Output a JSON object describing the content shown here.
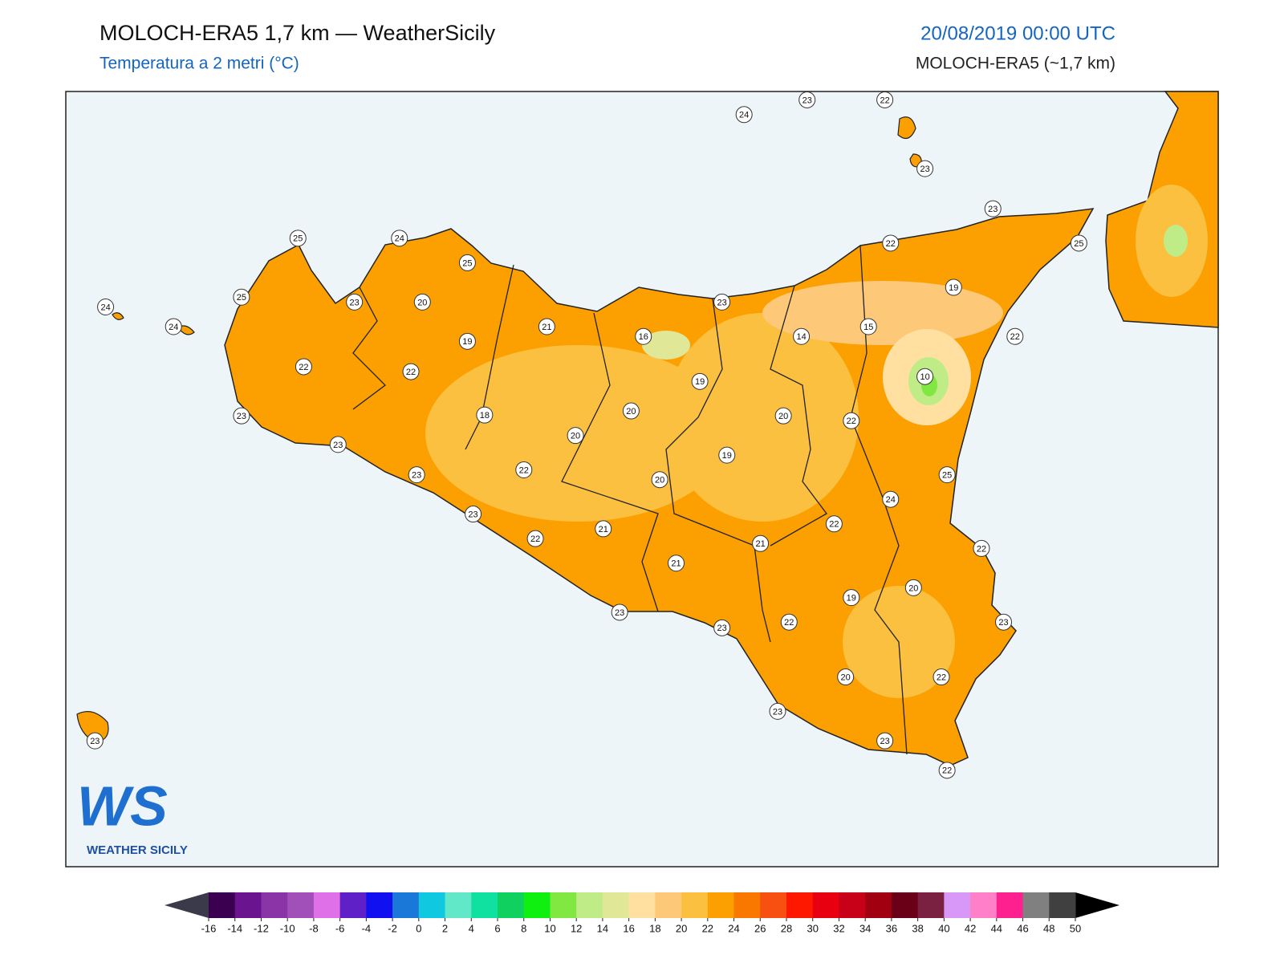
{
  "header": {
    "title": "MOLOCH-ERA5 1,7 km — WeatherSicily",
    "subtitle": "Temperatura a 2 metri (°C)",
    "datetime": "20/08/2019 00:00 UTC",
    "model": "MOLOCH-ERA5 (~1,7 km)"
  },
  "stations": [
    24,
    23,
    22,
    23,
    23,
    22,
    25,
    19,
    22,
    25,
    24,
    25,
    24,
    24,
    25,
    23,
    20,
    21,
    16,
    23,
    14,
    15,
    19,
    22,
    22,
    19,
    10,
    20,
    18,
    20,
    20,
    22,
    23,
    23,
    19,
    22,
    23,
    20,
    25,
    24,
    23,
    22,
    21,
    22,
    21,
    22,
    21,
    20,
    19,
    23,
    22,
    23,
    23,
    20,
    22,
    23,
    23,
    23,
    22
  ],
  "colorbar": {
    "ticks": [
      -16,
      -14,
      -12,
      -10,
      -8,
      -6,
      -4,
      -2,
      0,
      2,
      4,
      6,
      8,
      10,
      12,
      14,
      16,
      18,
      20,
      22,
      24,
      26,
      28,
      30,
      32,
      34,
      36,
      38,
      40,
      42,
      44,
      46,
      48,
      50
    ],
    "colors": [
      "#3c0050",
      "#6a1490",
      "#8a34a8",
      "#a050b8",
      "#e070e8",
      "#6020c8",
      "#1010f0",
      "#1a78d8",
      "#10c8e0",
      "#60e8c8",
      "#10e0a0",
      "#10d060",
      "#10f010",
      "#80e840",
      "#c0ec88",
      "#e0e898",
      "#ffe0a0",
      "#fdc878",
      "#fbc040",
      "#fba000",
      "#f87800",
      "#f85010",
      "#ff1800",
      "#e80010",
      "#c80018",
      "#a00010",
      "#6a0018",
      "#7a2040",
      "#d898f8",
      "#ff80c8",
      "#ff2090",
      "#808080",
      "#404040"
    ],
    "under_color": "#3a3a4a",
    "over_color": "#000000"
  },
  "logo": {
    "mark": "WS",
    "name": "WEATHER SICILY"
  }
}
